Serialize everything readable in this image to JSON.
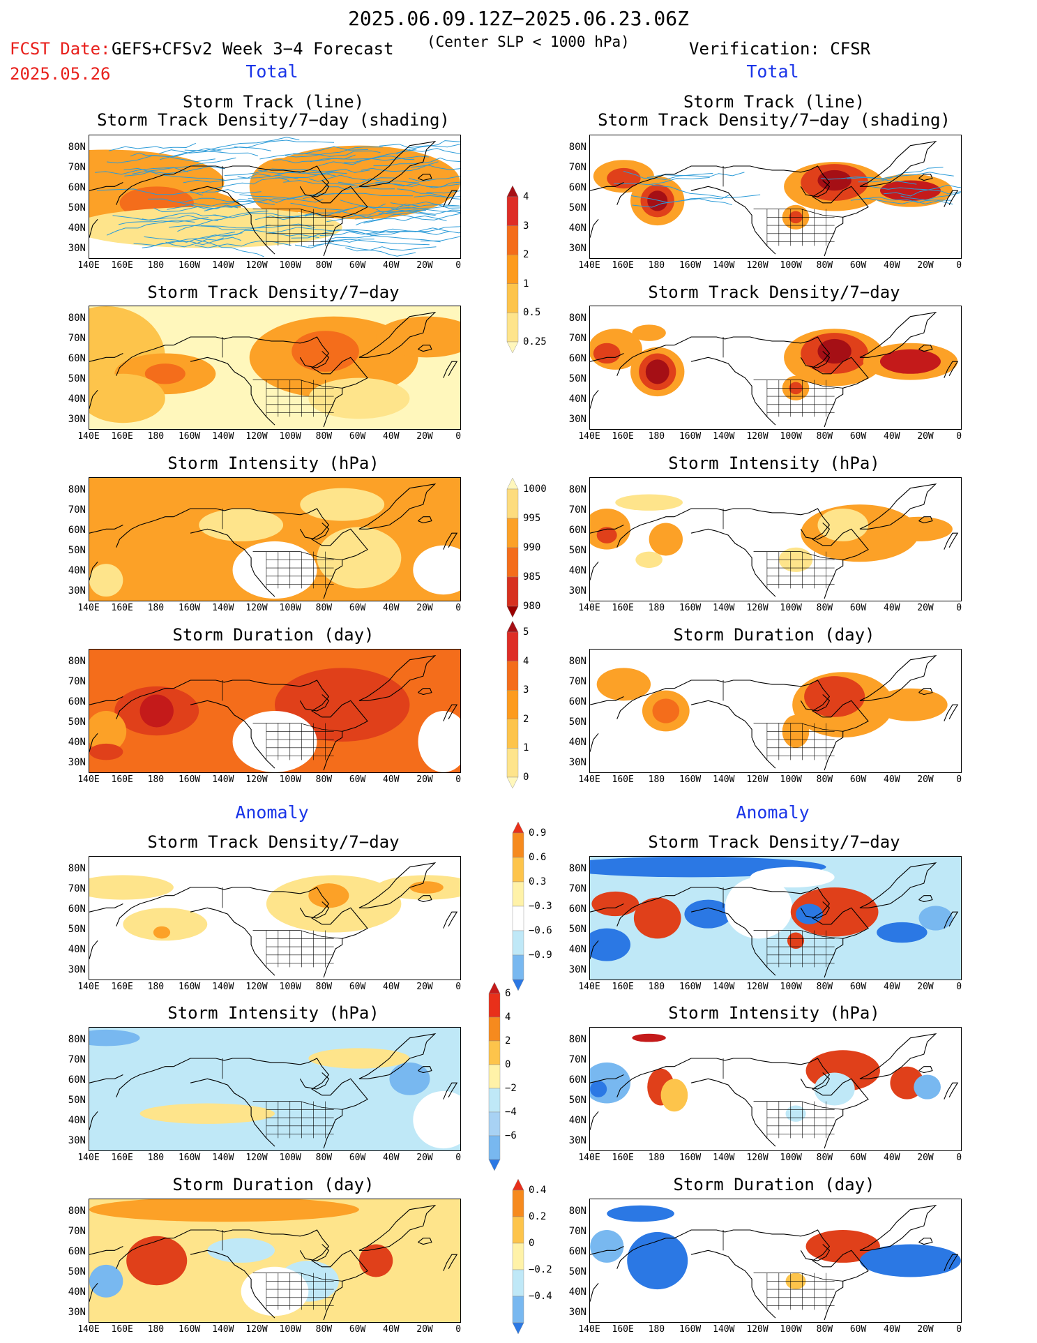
{
  "header": {
    "date_range": "2025.06.09.12Z−2025.06.23.06Z",
    "fcst_label": "FCST Date:",
    "fcst_date": "2025.05.26",
    "model": "GEFS+CFSv2 Week 3−4 Forecast",
    "criterion": "(Center SLP < 1000 hPa)",
    "verification": "Verification: CFSR"
  },
  "sections": {
    "total": "Total",
    "anomaly": "Anomaly"
  },
  "panel_titles": {
    "track_line": "Storm Track (line)",
    "track_shading": "Storm Track Density/7−day (shading)",
    "density": "Storm Track Density/7−day",
    "intensity": "Storm Intensity (hPa)",
    "duration": "Storm Duration (day)"
  },
  "axes": {
    "lat_labels": [
      "80N",
      "70N",
      "60N",
      "50N",
      "40N",
      "30N"
    ],
    "lon_labels": [
      "140E",
      "160E",
      "180",
      "160W",
      "140W",
      "120W",
      "100W",
      "80W",
      "60W",
      "40W",
      "20W",
      "0"
    ]
  },
  "colorbars": {
    "density_total": {
      "labels": [
        "4",
        "3",
        "2",
        "1",
        "0.5",
        "0.25"
      ],
      "colors": [
        "#a50f15",
        "#de2d26",
        "#f46d1b",
        "#fd9b1e",
        "#fdc44b",
        "#fee48b",
        "#fff7bc"
      ]
    },
    "intensity_total": {
      "labels": [
        "1000",
        "995",
        "990",
        "985",
        "980"
      ],
      "colors": [
        "#fff7bc",
        "#fddc7e",
        "#fca127",
        "#f46d1b",
        "#d7301f",
        "#990000"
      ]
    },
    "duration_total": {
      "labels": [
        "5",
        "4",
        "3",
        "2",
        "1",
        "0"
      ],
      "colors": [
        "#a50f15",
        "#de2d26",
        "#f46d1b",
        "#fd9b1e",
        "#fdc44b",
        "#fee48b",
        "#fff7bc"
      ]
    },
    "density_anom": {
      "labels": [
        "0.9",
        "0.6",
        "0.3",
        "−0.3",
        "−0.6",
        "−0.9"
      ],
      "colors": [
        "#e8301a",
        "#f68a1e",
        "#fdc44b",
        "#fff2a8",
        "#ffffff",
        "#bfe8f7",
        "#78b8f0",
        "#2b78e4"
      ]
    },
    "intensity_anom": {
      "labels": [
        "6",
        "4",
        "2",
        "0",
        "−2",
        "−4",
        "−6"
      ],
      "colors": [
        "#c41a1a",
        "#e8301a",
        "#f68a1e",
        "#fdc44b",
        "#fff2a8",
        "#bfe8f7",
        "#a8d2f4",
        "#78b8f0",
        "#2b78e4"
      ]
    },
    "duration_anom": {
      "labels": [
        "0.4",
        "0.2",
        "0",
        "−0.2",
        "−0.4"
      ],
      "colors": [
        "#e8301a",
        "#f68a1e",
        "#fdc44b",
        "#fff2a8",
        "#bfe8f7",
        "#78b8f0",
        "#2b78e4"
      ]
    }
  }
}
